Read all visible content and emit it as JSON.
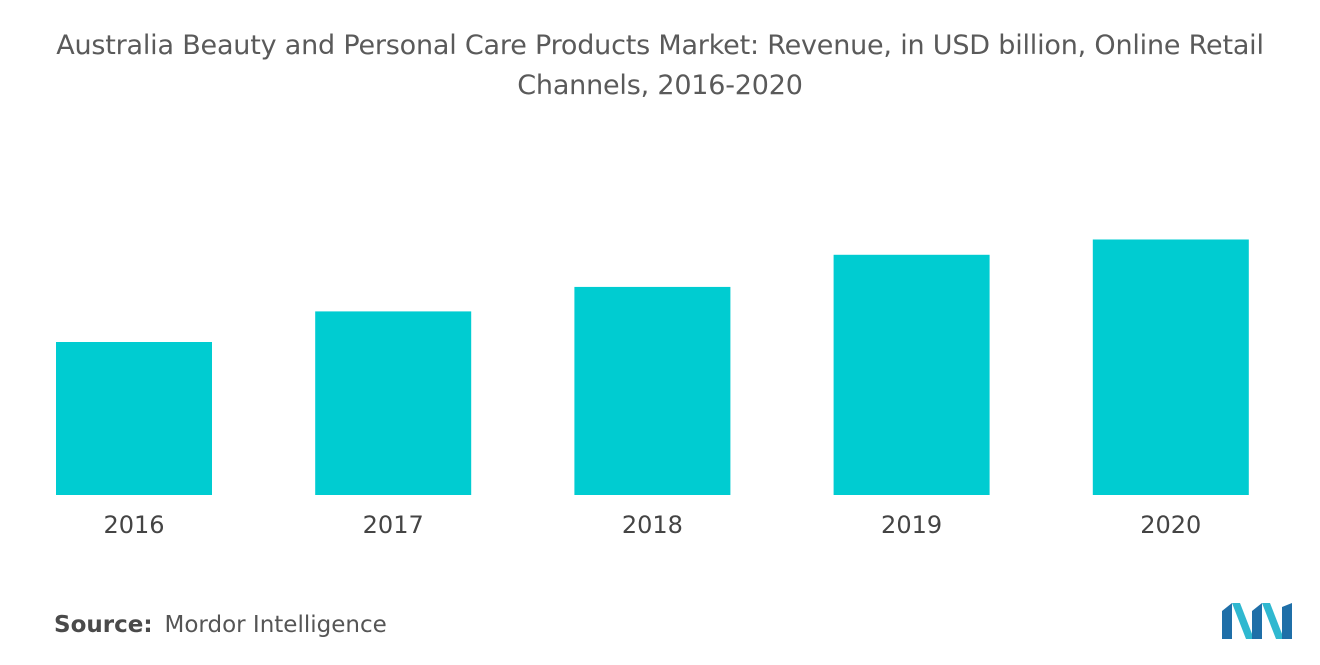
{
  "title_line1": "Australia Beauty and Personal Care Products Market: Revenue, in USD billion, Online Retail",
  "title_line2": "Channels, 2016-2020",
  "source_label": "Source:",
  "source_text": "Mordor Intelligence",
  "logo_icon": "mordor-intelligence-logo-icon",
  "colors": {
    "bar": "#00ccd1",
    "tick_text": "#444444",
    "title": "#5a5a5a"
  },
  "chart_data": {
    "type": "bar",
    "title": "Australia Beauty and Personal Care Products Market: Revenue, in USD billion, Online Retail Channels, 2016-2020",
    "categories": [
      "2016",
      "2017",
      "2018",
      "2019",
      "2020"
    ],
    "values": [
      1.0,
      1.2,
      1.36,
      1.57,
      1.67
    ],
    "xlabel": "",
    "ylabel": "",
    "ylim": [
      0,
      2.0
    ],
    "grid": false,
    "legend": "none"
  }
}
